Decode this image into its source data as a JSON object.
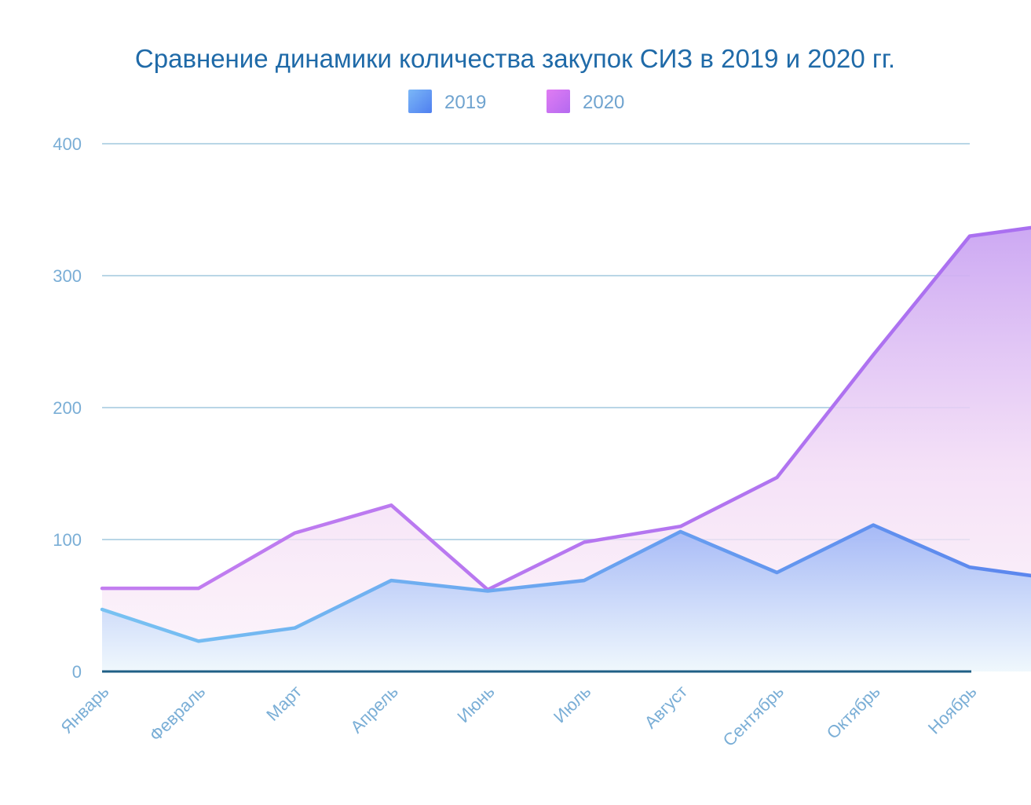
{
  "chart_data": {
    "type": "area",
    "title": "Сравнение динамики количества закупок СИЗ в 2019 и 2020 гг.",
    "categories": [
      "Январь",
      "Февраль",
      "Март",
      "Апрель",
      "Июнь",
      "Июль",
      "Август",
      "Сентябрь",
      "Октябрь",
      "Ноябрь"
    ],
    "x": [
      0,
      1,
      2,
      3,
      4,
      5,
      6,
      7,
      7.55,
      8,
      8.55,
      9,
      9.55,
      10
    ],
    "series": [
      {
        "name": "2019",
        "color": "#5b8ff0",
        "values": [
          47,
          23,
          33,
          69,
          61,
          69,
          106,
          75,
          null,
          111,
          null,
          79,
          null,
          69
        ]
      },
      {
        "name": "2020",
        "color": "#c36ff0",
        "values": [
          63,
          63,
          105,
          126,
          62,
          98,
          110,
          147,
          null,
          240,
          null,
          330,
          null,
          340
        ]
      }
    ],
    "ylim": [
      0,
      400
    ],
    "yticks": [
      0,
      100,
      200,
      300,
      400
    ],
    "grid": true,
    "legend": "top-center"
  }
}
